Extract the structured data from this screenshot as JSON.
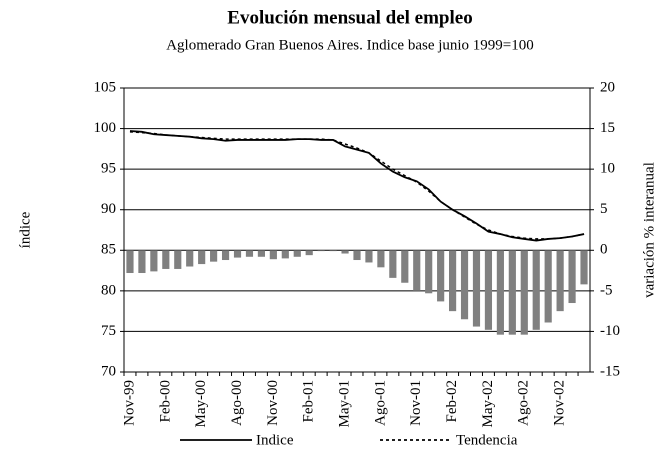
{
  "chart_data": {
    "type": "bar_line",
    "title": "Evolución mensual del empleo",
    "subtitle": "Aglomerado Gran Buenos Aires. Indice base junio 1999=100",
    "y_label": "índice",
    "y2_label": "variación % interanual",
    "categories": [
      "Nov-99",
      null,
      null,
      "Feb-00",
      null,
      null,
      "May-00",
      null,
      null,
      "Ago-00",
      null,
      null,
      "Nov-00",
      null,
      null,
      "Feb-01",
      null,
      null,
      "May-01",
      null,
      null,
      "Ago-01",
      null,
      null,
      "Nov-01",
      null,
      null,
      "Feb-02",
      null,
      null,
      "May-02",
      null,
      null,
      "Ago-02",
      null,
      null,
      "Nov-02",
      null,
      null
    ],
    "series": [
      {
        "name": "variación % interanual",
        "kind": "bar",
        "axis": "y2",
        "color": "#808080",
        "values": [
          -2.8,
          -2.8,
          -2.6,
          -2.3,
          -2.3,
          -2.0,
          -1.7,
          -1.4,
          -1.2,
          -0.9,
          -0.8,
          -0.8,
          -1.1,
          -1.0,
          -0.8,
          -0.6,
          -0.1,
          -0.1,
          -0.4,
          -1.2,
          -1.5,
          -2.1,
          -3.4,
          -4.0,
          -5.0,
          -5.3,
          -6.3,
          -7.5,
          -8.5,
          -9.4,
          -9.8,
          -10.4,
          -10.4,
          -10.4,
          -9.8,
          -8.9,
          -7.5,
          -6.5,
          -4.2
        ]
      },
      {
        "name": "Indice",
        "kind": "line",
        "color": "#000000",
        "dash": "solid",
        "values": [
          99.7,
          99.6,
          99.3,
          99.2,
          99.1,
          99.0,
          98.8,
          98.7,
          98.5,
          98.6,
          98.6,
          98.6,
          98.6,
          98.6,
          98.7,
          98.7,
          98.6,
          98.6,
          97.8,
          97.4,
          97.0,
          95.7,
          94.7,
          94.0,
          93.5,
          92.5,
          91.0,
          90.0,
          89.2,
          88.3,
          87.3,
          87.0,
          86.6,
          86.4,
          86.2,
          86.4,
          86.5,
          86.7,
          87.0
        ]
      },
      {
        "name": "Tendencia",
        "kind": "line",
        "color": "#000000",
        "dash": "dotted",
        "values": [
          99.6,
          99.5,
          99.4,
          99.2,
          99.1,
          99.0,
          98.9,
          98.8,
          98.7,
          98.7,
          98.7,
          98.7,
          98.7,
          98.7,
          98.7,
          98.7,
          98.7,
          98.6,
          98.1,
          97.6,
          97.0,
          96.0,
          95.0,
          94.2,
          93.4,
          92.3,
          91.0,
          90.0,
          89.1,
          88.2,
          87.5,
          87.0,
          86.7,
          86.5,
          86.4,
          86.4,
          86.5,
          86.7,
          87.0
        ]
      }
    ],
    "ylim": [
      70,
      105
    ],
    "yticks": [
      70,
      75,
      80,
      85,
      90,
      95,
      100,
      105
    ],
    "y2lim": [
      -15,
      20
    ],
    "y2ticks": [
      -15,
      -10,
      -5,
      0,
      5,
      10,
      15,
      20
    ],
    "grid": true
  }
}
